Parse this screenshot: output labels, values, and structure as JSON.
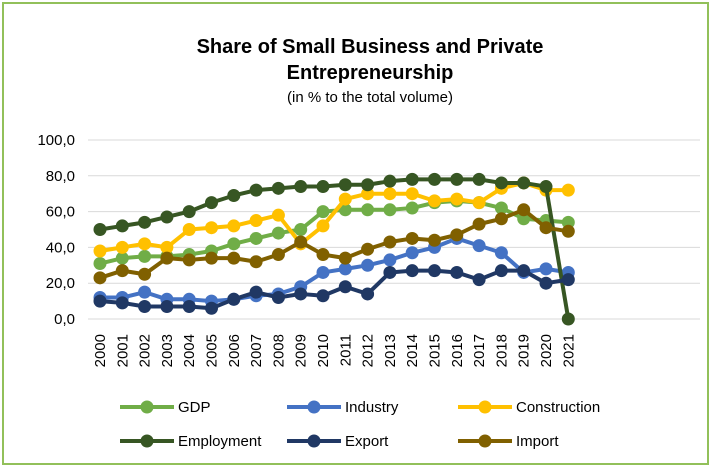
{
  "chart_data": {
    "type": "line",
    "title": "Share of Small Business and Private Entrepreneurship",
    "subtitle": "(in % to the total volume)",
    "xlabel": "",
    "ylabel": "",
    "ylim": [
      0,
      100
    ],
    "y_ticks": [
      "0,0",
      "20,0",
      "40,0",
      "60,0",
      "80,0",
      "100,0"
    ],
    "y_tick_values": [
      0,
      20,
      40,
      60,
      80,
      100
    ],
    "grid": true,
    "legend_position": "bottom",
    "categories": [
      "2000",
      "2001",
      "2002",
      "2003",
      "2004",
      "2005",
      "2006",
      "2007",
      "2008",
      "2009",
      "2010",
      "2011",
      "2012",
      "2013",
      "2014",
      "2015",
      "2016",
      "2017",
      "2018",
      "2019",
      "2020",
      "2021"
    ],
    "series": [
      {
        "name": "GDP",
        "color": "#70ad47",
        "values": [
          31,
          34,
          35,
          35,
          36,
          38,
          42,
          45,
          48,
          50,
          60,
          61,
          61,
          61,
          62,
          65,
          66,
          65,
          62,
          56,
          55,
          54
        ]
      },
      {
        "name": "Industry",
        "color": "#4472c4",
        "values": [
          12,
          12,
          15,
          11,
          11,
          10,
          11,
          13,
          14,
          18,
          26,
          28,
          30,
          33,
          37,
          40,
          45,
          41,
          37,
          26,
          28,
          26
        ]
      },
      {
        "name": "Construction",
        "color": "#ffc000",
        "values": [
          38,
          40,
          42,
          40,
          50,
          51,
          52,
          55,
          58,
          42,
          52,
          67,
          70,
          70,
          70,
          66,
          67,
          65,
          73,
          76,
          72,
          72
        ]
      },
      {
        "name": "Employment",
        "color": "#375623",
        "values": [
          50,
          52,
          54,
          57,
          60,
          65,
          69,
          72,
          73,
          74,
          74,
          75,
          75,
          77,
          78,
          78,
          78,
          78,
          76,
          76,
          74,
          0
        ]
      },
      {
        "name": "Export",
        "color": "#203864",
        "values": [
          10,
          9,
          7,
          7,
          7,
          6,
          11,
          15,
          12,
          14,
          13,
          18,
          14,
          26,
          27,
          27,
          26,
          22,
          27,
          27,
          20,
          22
        ]
      },
      {
        "name": "Import",
        "color": "#806000",
        "values": [
          23,
          27,
          25,
          34,
          33,
          34,
          34,
          32,
          36,
          43,
          36,
          34,
          39,
          43,
          45,
          44,
          47,
          53,
          56,
          61,
          51,
          49
        ]
      }
    ]
  }
}
